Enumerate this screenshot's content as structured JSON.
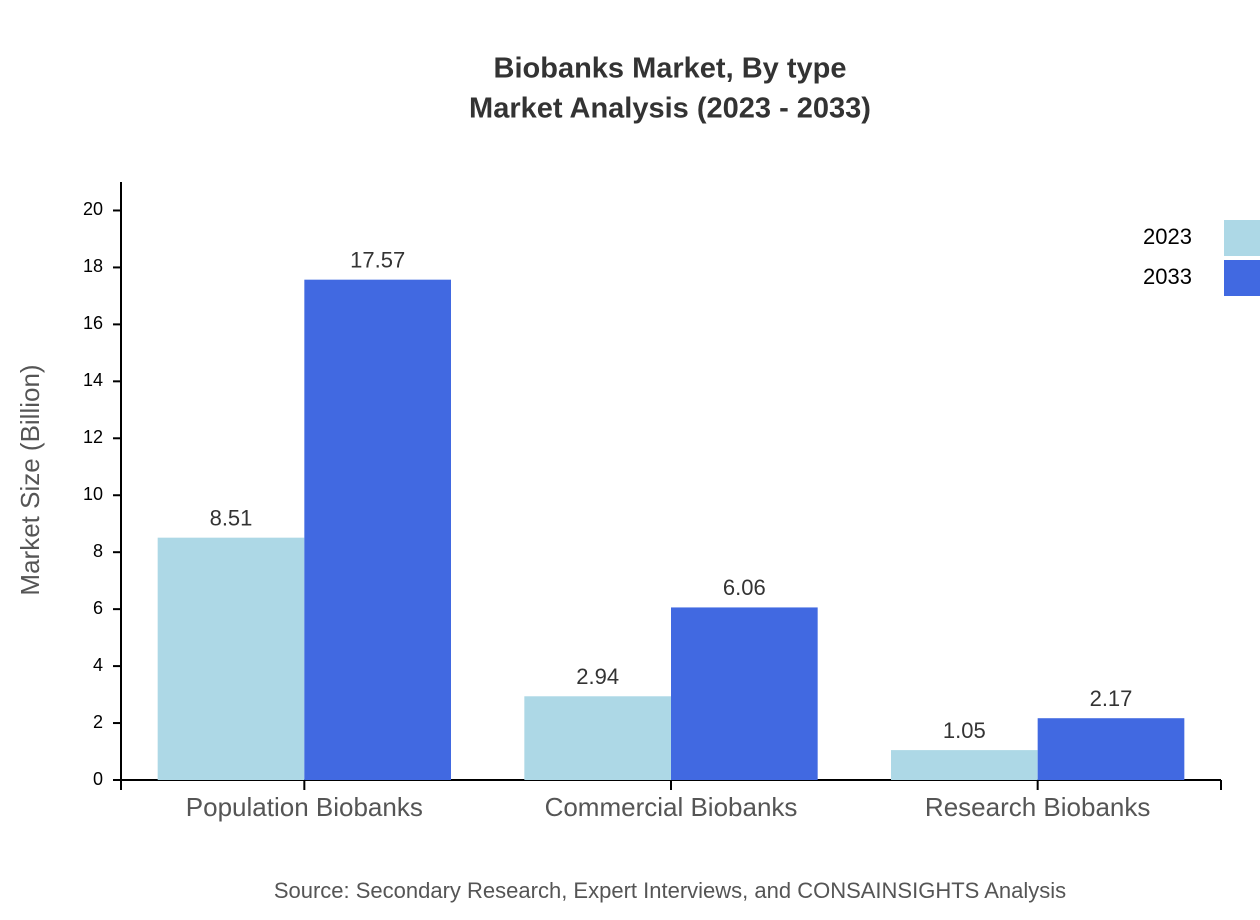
{
  "chart_data": {
    "type": "bar",
    "title": "Biobanks Market, By type",
    "subtitle": "Market Analysis (2023 - 2033)",
    "y_label": "Market Size (Billion)",
    "source": "Source: Secondary Research, Expert Interviews, and CONSAINSIGHTS Analysis",
    "categories": [
      "Population Biobanks",
      "Commercial Biobanks",
      "Research Biobanks"
    ],
    "series": [
      {
        "name": "2023",
        "color": "#add8e6",
        "values": [
          8.51,
          2.94,
          1.05
        ]
      },
      {
        "name": "2033",
        "color": "#4169e1",
        "values": [
          17.57,
          6.06,
          2.17
        ]
      }
    ],
    "ylim": [
      0,
      21
    ],
    "yticks": [
      0,
      2,
      4,
      6,
      8,
      10,
      12,
      14,
      16,
      18,
      20
    ],
    "legend": "top-right"
  }
}
